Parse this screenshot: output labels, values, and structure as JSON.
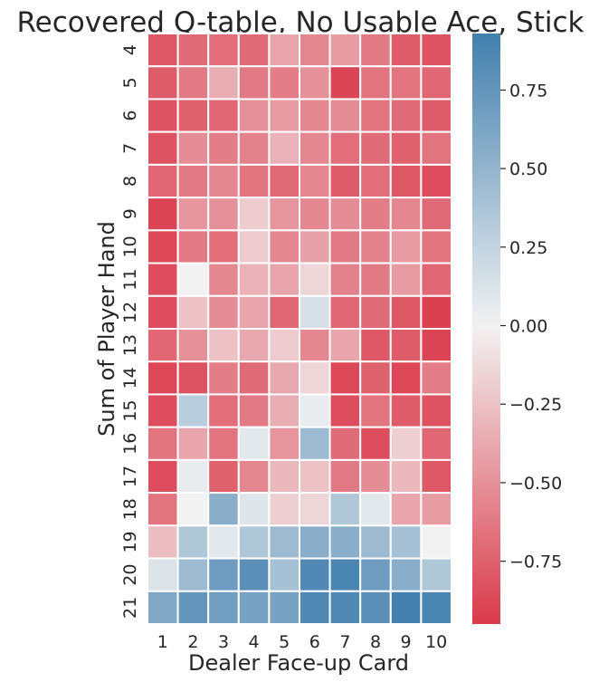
{
  "chart_data": {
    "type": "heatmap",
    "title": "Recovered Q-table, No Usable Ace, Stick",
    "xlabel": "Dealer Face-up Card",
    "ylabel": "Sum of Player Hand",
    "x_categories": [
      "1",
      "2",
      "3",
      "4",
      "5",
      "6",
      "7",
      "8",
      "9",
      "10"
    ],
    "y_categories": [
      "4",
      "5",
      "6",
      "7",
      "8",
      "9",
      "10",
      "11",
      "12",
      "13",
      "14",
      "15",
      "16",
      "17",
      "18",
      "19",
      "20",
      "21"
    ],
    "values": [
      [
        -0.8,
        -0.7,
        -0.68,
        -0.7,
        -0.4,
        -0.55,
        -0.45,
        -0.62,
        -0.78,
        -0.82
      ],
      [
        -0.78,
        -0.62,
        -0.35,
        -0.62,
        -0.6,
        -0.5,
        -0.9,
        -0.65,
        -0.65,
        -0.72
      ],
      [
        -0.82,
        -0.75,
        -0.72,
        -0.5,
        -0.45,
        -0.55,
        -0.52,
        -0.65,
        -0.7,
        -0.78
      ],
      [
        -0.82,
        -0.52,
        -0.6,
        -0.58,
        -0.33,
        -0.55,
        -0.68,
        -0.7,
        -0.75,
        -0.65
      ],
      [
        -0.72,
        -0.62,
        -0.55,
        -0.65,
        -0.7,
        -0.55,
        -0.78,
        -0.68,
        -0.8,
        -0.85
      ],
      [
        -0.9,
        -0.48,
        -0.5,
        -0.2,
        -0.48,
        -0.55,
        -0.52,
        -0.6,
        -0.55,
        -0.7
      ],
      [
        -0.88,
        -0.62,
        -0.68,
        -0.2,
        -0.55,
        -0.42,
        -0.62,
        -0.58,
        -0.45,
        -0.65
      ],
      [
        -0.85,
        0.0,
        -0.55,
        -0.33,
        -0.4,
        -0.15,
        -0.58,
        -0.62,
        -0.45,
        -0.72
      ],
      [
        -0.85,
        -0.25,
        -0.52,
        -0.4,
        -0.72,
        0.15,
        -0.72,
        -0.7,
        -0.8,
        -0.92
      ],
      [
        -0.72,
        -0.5,
        -0.25,
        -0.38,
        -0.2,
        -0.55,
        -0.4,
        -0.8,
        -0.78,
        -0.9
      ],
      [
        -0.88,
        -0.82,
        -0.6,
        -0.7,
        -0.38,
        -0.15,
        -0.88,
        -0.75,
        -0.88,
        -0.6
      ],
      [
        -0.85,
        0.3,
        -0.68,
        -0.62,
        -0.35,
        0.05,
        -0.85,
        -0.65,
        -0.78,
        -0.82
      ],
      [
        -0.65,
        -0.4,
        -0.65,
        0.08,
        -0.48,
        0.45,
        -0.7,
        -0.85,
        -0.18,
        -0.72
      ],
      [
        -0.85,
        0.05,
        -0.75,
        -0.55,
        -0.3,
        -0.25,
        -0.62,
        -0.52,
        -0.3,
        -0.8
      ],
      [
        -0.65,
        0.0,
        0.55,
        0.1,
        -0.18,
        -0.15,
        0.35,
        0.08,
        -0.4,
        -0.45
      ],
      [
        -0.28,
        0.35,
        0.08,
        0.35,
        0.45,
        0.55,
        0.55,
        0.45,
        0.4,
        0.0
      ],
      [
        0.12,
        0.45,
        0.7,
        0.8,
        0.4,
        0.85,
        0.88,
        0.7,
        0.55,
        0.35
      ],
      [
        0.6,
        0.75,
        0.68,
        0.65,
        0.65,
        0.85,
        0.85,
        0.8,
        0.92,
        0.88
      ]
    ],
    "vmin": -0.95,
    "vmax": 0.93,
    "colormap": {
      "negative": "#da3a4b",
      "center": "#f2f2f2",
      "positive": "#427fae"
    },
    "colorbar_ticks": [
      "0.75",
      "0.50",
      "0.25",
      "0.00",
      "−0.25",
      "−0.50",
      "−0.75"
    ],
    "colorbar_tick_values": [
      0.75,
      0.5,
      0.25,
      0.0,
      -0.25,
      -0.5,
      -0.75
    ],
    "grid_lines": "white"
  }
}
